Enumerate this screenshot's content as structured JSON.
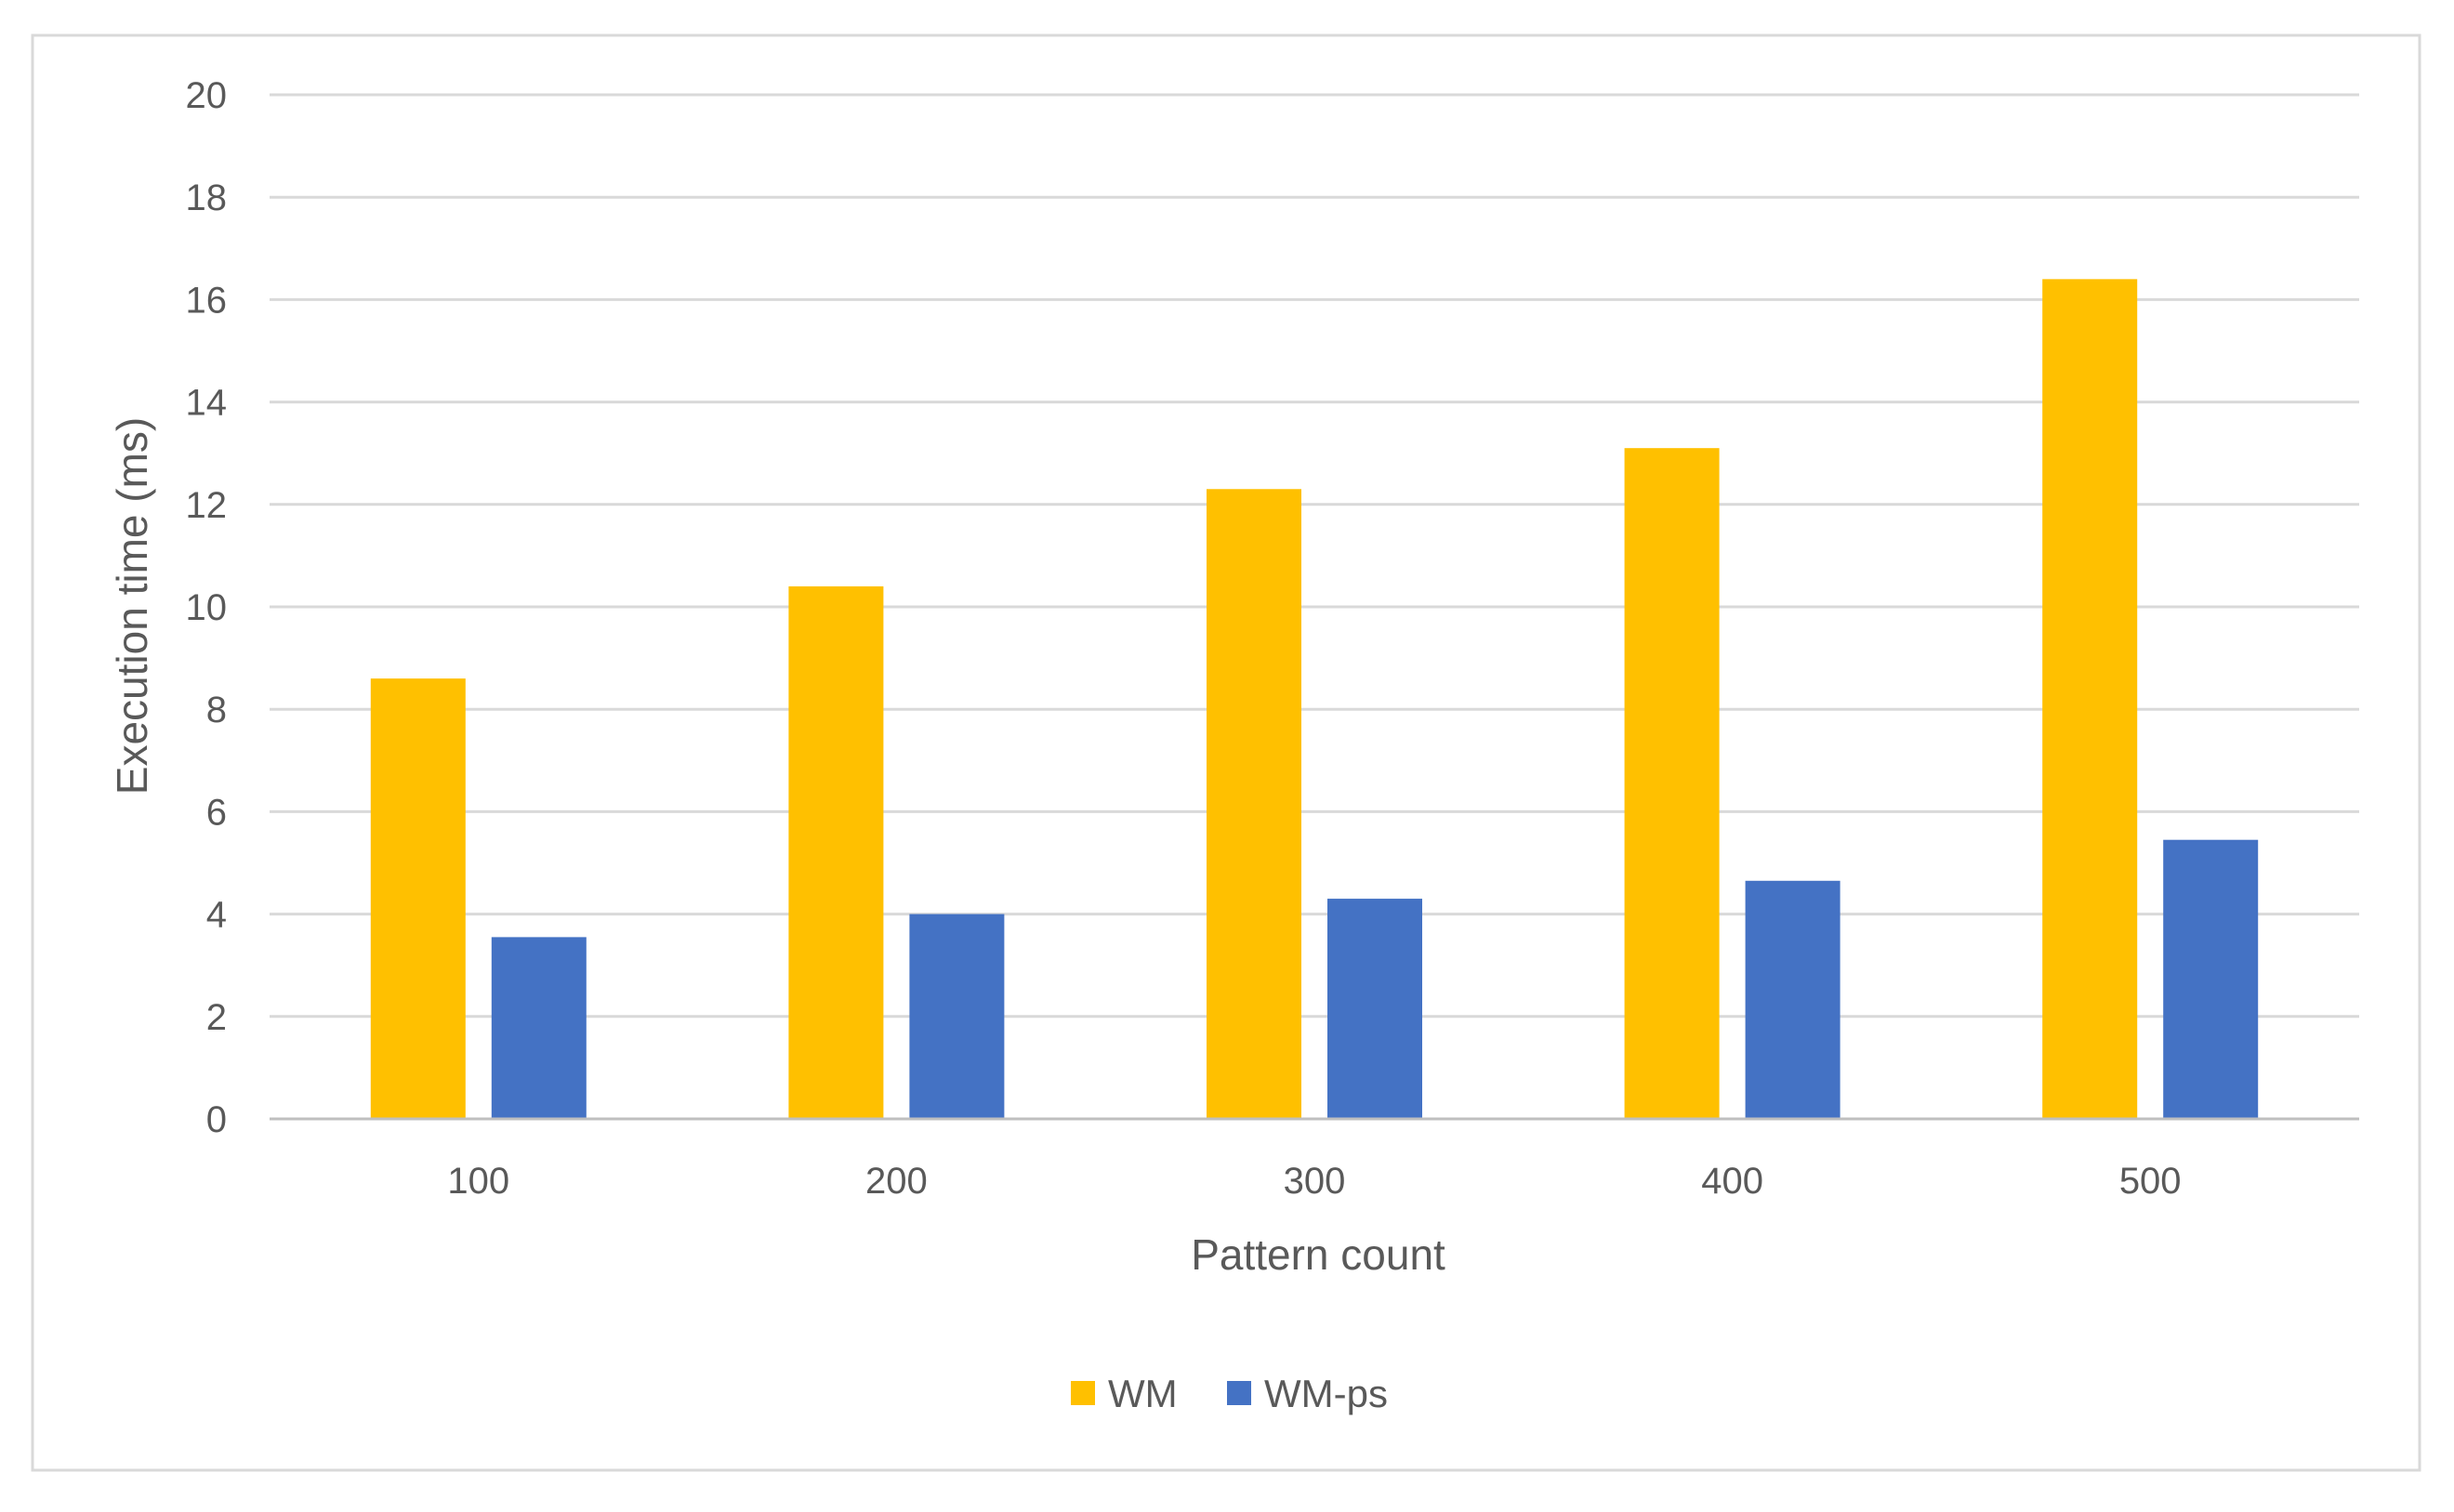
{
  "chart_data": {
    "type": "bar",
    "title": "",
    "xlabel": "Pattern count",
    "ylabel": "Execution time (ms)",
    "categories": [
      "100",
      "200",
      "300",
      "400",
      "500"
    ],
    "series": [
      {
        "name": "WM",
        "color": "#FFC000",
        "values": [
          8.6,
          10.4,
          12.3,
          13.1,
          16.4
        ]
      },
      {
        "name": "WM-ps",
        "color": "#4472C4",
        "values": [
          3.55,
          4.0,
          4.3,
          4.65,
          5.45
        ]
      }
    ],
    "ylim": [
      0,
      20
    ],
    "yticks": [
      "0",
      "2",
      "4",
      "6",
      "8",
      "10",
      "12",
      "14",
      "16",
      "18",
      "20"
    ],
    "grid": true,
    "legend_position": "bottom",
    "colors": {
      "grid": "#D9D9D9",
      "axis": "#BFBFBF",
      "frame": "#D9D9D9",
      "text": "#595959"
    }
  }
}
